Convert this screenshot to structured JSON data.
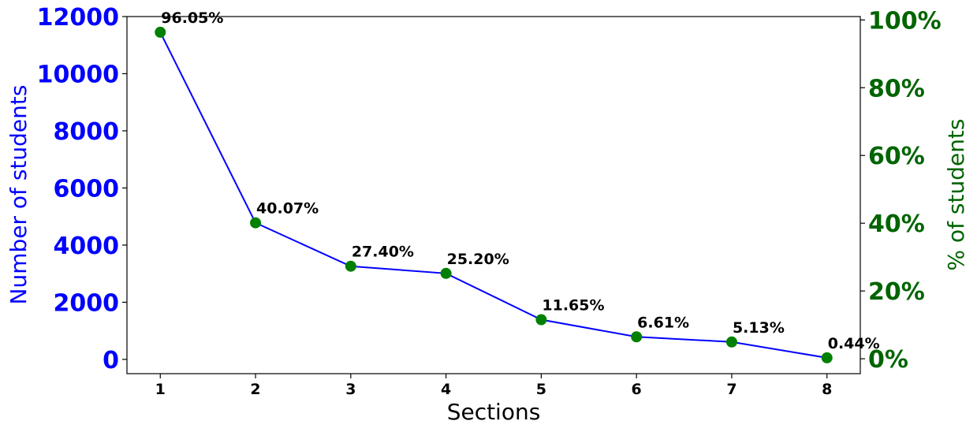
{
  "chart_data": {
    "type": "line",
    "xlabel": "Sections",
    "ylabel_left": "Number of students",
    "ylabel_right": "% of students",
    "x": [
      1,
      2,
      3,
      4,
      5,
      6,
      7,
      8
    ],
    "y_left": [
      11450,
      4780,
      3260,
      3010,
      1390,
      790,
      610,
      55
    ],
    "percent_labels": [
      "96.05%",
      "40.07%",
      "27.40%",
      "25.20%",
      "11.65%",
      "6.61%",
      "5.13%",
      "0.44%"
    ],
    "ylim_left": [
      -500,
      12000
    ],
    "ylim_right": [
      -0.044,
      1.01
    ],
    "yticks_left": [
      "0",
      "2000",
      "4000",
      "6000",
      "8000",
      "10000",
      "12000"
    ],
    "yticks_right": [
      "0%",
      "20%",
      "40%",
      "60%",
      "80%",
      "100%"
    ],
    "xticks": [
      "1",
      "2",
      "3",
      "4",
      "5",
      "6",
      "7",
      "8"
    ],
    "xlim": [
      0.65,
      8.35
    ],
    "grid": false,
    "colors": {
      "line": "#0000ff",
      "marker": "#008000",
      "left_axis": "#0000ff",
      "right_axis": "#006400",
      "labels": "#000000"
    }
  }
}
